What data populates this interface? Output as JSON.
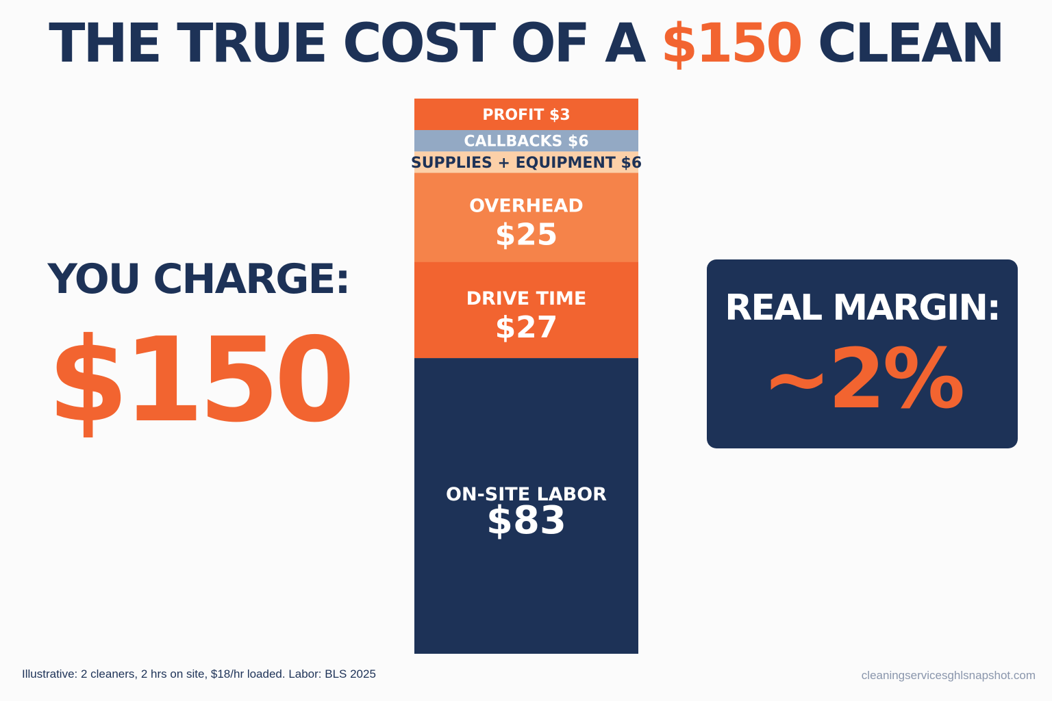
{
  "title": {
    "prefix": "THE TRUE COST OF A",
    "highlight": "$150",
    "suffix": "CLEAN"
  },
  "charge": {
    "label": "YOU CHARGE:",
    "value": "$150"
  },
  "margin": {
    "label": "REAL MARGIN:",
    "value": "~2%"
  },
  "footnote": "Illustrative: 2 cleaners, 2 hrs on site, $18/hr loaded. Labor: BLS 2025",
  "source": "cleaningservicesghlsnapshot.com",
  "colors": {
    "navy": "#1d3257",
    "orange": "#f26430",
    "light_orange": "#f5834a",
    "peach": "#fcd0a8",
    "blue_gray": "#93a9c4"
  },
  "chart_data": {
    "type": "bar",
    "stacked": true,
    "total": 150,
    "segments": [
      {
        "label": "ON-SITE LABOR",
        "value_label": "$83",
        "value": 83,
        "color": "#1d3257",
        "text_color": "#ffffff"
      },
      {
        "label": "DRIVE TIME",
        "value_label": "$27",
        "value": 27,
        "color": "#f26430",
        "text_color": "#ffffff"
      },
      {
        "label": "OVERHEAD",
        "value_label": "$25",
        "value": 25,
        "color": "#f5834a",
        "text_color": "#ffffff"
      },
      {
        "label": "SUPPLIES + EQUIPMENT $6",
        "value_label": "",
        "value": 6,
        "color": "#fcd0a8",
        "text_color": "#1d3257"
      },
      {
        "label": "CALLBACKS $6",
        "value_label": "",
        "value": 6,
        "color": "#93a9c4",
        "text_color": "#ffffff"
      },
      {
        "label": "PROFIT $3",
        "value_label": "",
        "value": 3,
        "color": "#f26430",
        "text_color": "#ffffff"
      }
    ]
  }
}
